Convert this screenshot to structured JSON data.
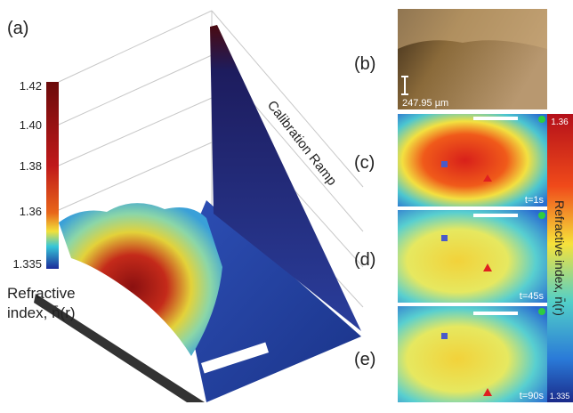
{
  "panels": {
    "a": "(a)",
    "b": "(b)",
    "c": "(c)",
    "d": "(d)",
    "e": "(e)"
  },
  "surface_colorbar": {
    "ticks": [
      "1.42",
      "1.40",
      "1.38",
      "1.36",
      "1.335"
    ],
    "label_lines": [
      "Refractive",
      "index, n̄(r)"
    ]
  },
  "ramp_label": "Calibration Ramp",
  "scale_label": "247.95 µm",
  "timestamps": [
    "t=1s",
    "t=45s",
    "t=90s"
  ],
  "image_colorbar": {
    "top": "1.36",
    "bottom": "1.335",
    "label": "Refractive index, n̄(r)"
  }
}
